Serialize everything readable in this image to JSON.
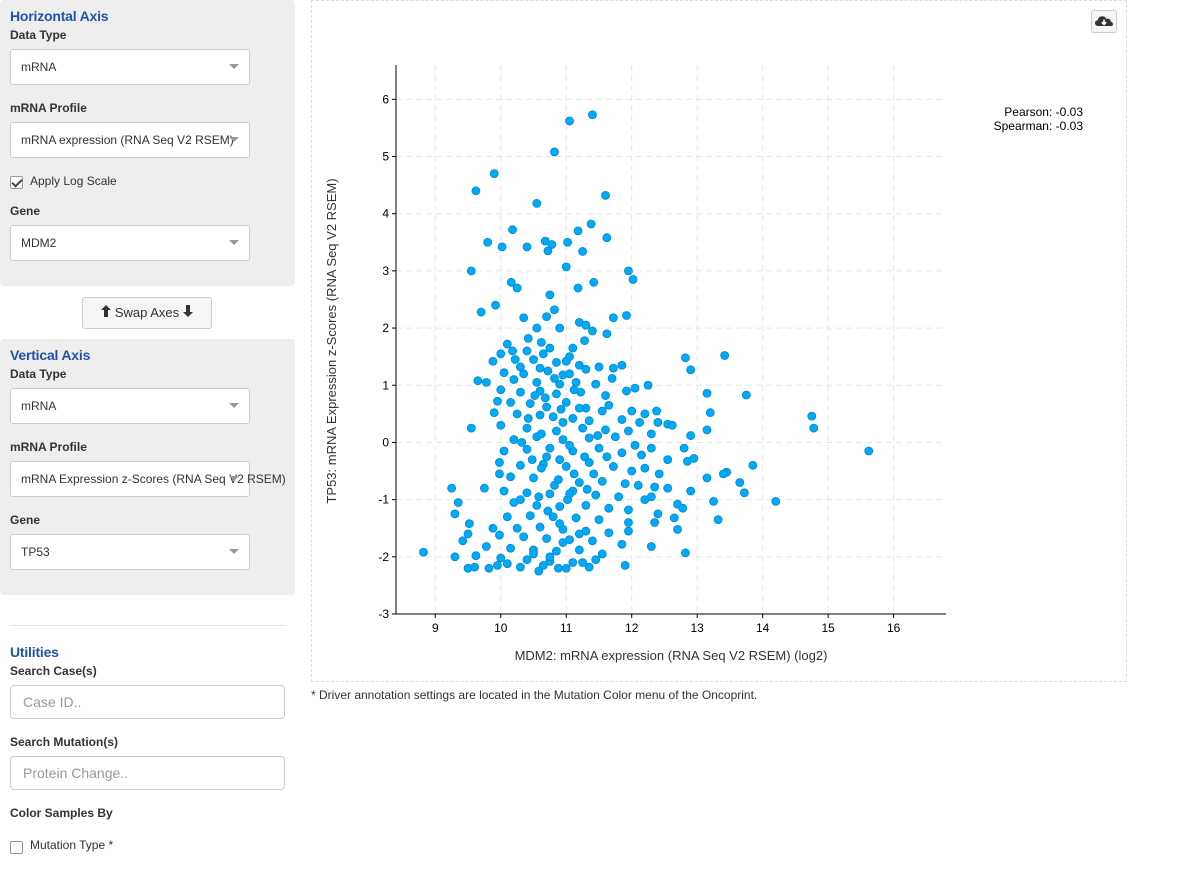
{
  "horizontal_axis": {
    "title": "Horizontal Axis",
    "data_type_label": "Data Type",
    "data_type_value": "mRNA",
    "profile_label": "mRNA Profile",
    "profile_value": "mRNA expression (RNA Seq V2 RSEM)",
    "log_scale_label": "Apply Log Scale",
    "log_scale_checked": true,
    "gene_label": "Gene",
    "gene_value": "MDM2"
  },
  "swap_axes_label": "Swap Axes",
  "vertical_axis": {
    "title": "Vertical Axis",
    "data_type_label": "Data Type",
    "data_type_value": "mRNA",
    "profile_label": "mRNA Profile",
    "profile_value": "mRNA Expression z-Scores (RNA Seq V2 RSEM)",
    "gene_label": "Gene",
    "gene_value": "TP53"
  },
  "utilities": {
    "title": "Utilities",
    "search_cases_label": "Search Case(s)",
    "search_cases_placeholder": "Case ID..",
    "search_mutations_label": "Search Mutation(s)",
    "search_mutations_placeholder": "Protein Change..",
    "color_by_label": "Color Samples By",
    "mutation_type_label": "Mutation Type *",
    "mutation_type_checked": false
  },
  "footnote": "* Driver annotation settings are located in the Mutation Color menu of the Oncoprint.",
  "icons": {
    "download": "cloud-download-icon",
    "caret": "caret-down-icon",
    "arrow_up": "arrow-up-icon",
    "arrow_down": "arrow-down-icon"
  },
  "chart_data": {
    "type": "scatter",
    "xlabel": "MDM2: mRNA expression (RNA Seq V2 RSEM) (log2)",
    "ylabel": "TP53: mRNA Expression z-Scores (RNA Seq V2 RSEM)",
    "xlim": [
      8.4,
      16.8
    ],
    "ylim": [
      -3,
      6.6
    ],
    "xticks": [
      9,
      10,
      11,
      12,
      13,
      14,
      15,
      16
    ],
    "yticks": [
      -3,
      -2,
      -1,
      0,
      1,
      2,
      3,
      4,
      5,
      6
    ],
    "grid": true,
    "marker_color": "#00AAF8",
    "marker_edge_color": "#0089C6",
    "annotations": [
      "Pearson: -0.03",
      "Spearman: -0.03"
    ],
    "points": [
      [
        11.4,
        5.73
      ],
      [
        11.05,
        5.62
      ],
      [
        10.82,
        5.08
      ],
      [
        9.9,
        4.7
      ],
      [
        9.62,
        4.4
      ],
      [
        10.55,
        4.18
      ],
      [
        11.6,
        4.32
      ],
      [
        11.38,
        3.82
      ],
      [
        11.18,
        3.7
      ],
      [
        10.18,
        3.72
      ],
      [
        9.8,
        3.5
      ],
      [
        10.02,
        3.42
      ],
      [
        10.4,
        3.42
      ],
      [
        10.68,
        3.52
      ],
      [
        11.02,
        3.5
      ],
      [
        11.62,
        3.58
      ],
      [
        10.78,
        3.46
      ],
      [
        10.72,
        3.35
      ],
      [
        11.25,
        3.34
      ],
      [
        9.55,
        3.0
      ],
      [
        11.0,
        3.07
      ],
      [
        11.95,
        3.0
      ],
      [
        12.02,
        2.85
      ],
      [
        10.16,
        2.8
      ],
      [
        10.25,
        2.7
      ],
      [
        11.42,
        2.8
      ],
      [
        11.18,
        2.7
      ],
      [
        10.75,
        2.58
      ],
      [
        9.92,
        2.4
      ],
      [
        9.7,
        2.28
      ],
      [
        10.82,
        2.32
      ],
      [
        11.72,
        2.18
      ],
      [
        11.92,
        2.22
      ],
      [
        10.35,
        2.18
      ],
      [
        10.7,
        2.2
      ],
      [
        11.2,
        2.1
      ],
      [
        11.4,
        1.95
      ],
      [
        11.3,
        2.05
      ],
      [
        10.55,
        2.0
      ],
      [
        10.9,
        2.0
      ],
      [
        11.62,
        1.9
      ],
      [
        10.42,
        1.82
      ],
      [
        11.28,
        1.78
      ],
      [
        10.62,
        1.75
      ],
      [
        10.1,
        1.72
      ],
      [
        10.18,
        1.6
      ],
      [
        10.4,
        1.6
      ],
      [
        10.65,
        1.55
      ],
      [
        11.1,
        1.65
      ],
      [
        11.05,
        1.5
      ],
      [
        10.0,
        1.55
      ],
      [
        10.22,
        1.45
      ],
      [
        10.5,
        1.45
      ],
      [
        10.85,
        1.4
      ],
      [
        11.0,
        1.42
      ],
      [
        10.75,
        1.65
      ],
      [
        9.88,
        1.42
      ],
      [
        10.3,
        1.32
      ],
      [
        10.6,
        1.3
      ],
      [
        11.2,
        1.35
      ],
      [
        11.5,
        1.32
      ],
      [
        11.72,
        1.3
      ],
      [
        11.85,
        1.35
      ],
      [
        10.05,
        1.22
      ],
      [
        10.35,
        1.2
      ],
      [
        10.72,
        1.25
      ],
      [
        10.95,
        1.18
      ],
      [
        11.3,
        1.28
      ],
      [
        11.05,
        1.2
      ],
      [
        11.7,
        1.12
      ],
      [
        9.65,
        1.08
      ],
      [
        9.78,
        1.05
      ],
      [
        10.2,
        1.1
      ],
      [
        10.55,
        1.05
      ],
      [
        10.9,
        1.02
      ],
      [
        11.15,
        1.05
      ],
      [
        11.45,
        1.02
      ],
      [
        12.05,
        0.95
      ],
      [
        12.25,
        1.0
      ],
      [
        12.82,
        1.48
      ],
      [
        12.9,
        1.27
      ],
      [
        13.42,
        1.52
      ],
      [
        10.0,
        0.92
      ],
      [
        10.3,
        0.88
      ],
      [
        10.6,
        0.9
      ],
      [
        10.85,
        0.85
      ],
      [
        11.22,
        0.88
      ],
      [
        11.6,
        0.82
      ],
      [
        11.92,
        0.9
      ],
      [
        13.15,
        0.86
      ],
      [
        13.75,
        0.83
      ],
      [
        9.95,
        0.72
      ],
      [
        10.15,
        0.7
      ],
      [
        10.45,
        0.68
      ],
      [
        10.7,
        0.62
      ],
      [
        11.0,
        0.7
      ],
      [
        11.3,
        0.6
      ],
      [
        11.65,
        0.65
      ],
      [
        11.55,
        0.55
      ],
      [
        12.0,
        0.55
      ],
      [
        12.2,
        0.5
      ],
      [
        12.38,
        0.55
      ],
      [
        13.2,
        0.52
      ],
      [
        14.75,
        0.46
      ],
      [
        9.9,
        0.52
      ],
      [
        10.25,
        0.5
      ],
      [
        10.6,
        0.48
      ],
      [
        10.8,
        0.45
      ],
      [
        11.1,
        0.42
      ],
      [
        11.35,
        0.38
      ],
      [
        11.85,
        0.4
      ],
      [
        12.12,
        0.35
      ],
      [
        12.4,
        0.35
      ],
      [
        12.55,
        0.32
      ],
      [
        12.62,
        0.3
      ],
      [
        13.15,
        0.22
      ],
      [
        14.78,
        0.25
      ],
      [
        9.55,
        0.25
      ],
      [
        10.0,
        0.3
      ],
      [
        10.4,
        0.25
      ],
      [
        10.85,
        0.2
      ],
      [
        11.25,
        0.25
      ],
      [
        11.6,
        0.22
      ],
      [
        11.95,
        0.2
      ],
      [
        12.3,
        0.15
      ],
      [
        12.9,
        0.12
      ],
      [
        10.2,
        0.05
      ],
      [
        10.55,
        0.1
      ],
      [
        10.95,
        0.05
      ],
      [
        11.35,
        0.08
      ],
      [
        11.75,
        0.1
      ],
      [
        12.05,
        -0.05
      ],
      [
        12.3,
        -0.1
      ],
      [
        12.8,
        -0.1
      ],
      [
        12.95,
        -0.28
      ],
      [
        12.85,
        -0.33
      ],
      [
        10.05,
        -0.15
      ],
      [
        10.4,
        -0.12
      ],
      [
        10.75,
        -0.1
      ],
      [
        11.1,
        -0.15
      ],
      [
        11.5,
        -0.1
      ],
      [
        11.85,
        -0.18
      ],
      [
        12.15,
        -0.22
      ],
      [
        12.55,
        -0.3
      ],
      [
        13.45,
        -0.52
      ],
      [
        13.4,
        -0.55
      ],
      [
        13.85,
        -0.4
      ],
      [
        15.62,
        -0.15
      ],
      [
        9.98,
        -0.35
      ],
      [
        10.3,
        -0.4
      ],
      [
        10.65,
        -0.38
      ],
      [
        11.0,
        -0.42
      ],
      [
        11.35,
        -0.35
      ],
      [
        11.72,
        -0.42
      ],
      [
        12.0,
        -0.5
      ],
      [
        12.2,
        -0.45
      ],
      [
        12.42,
        -0.55
      ],
      [
        13.15,
        -0.62
      ],
      [
        13.65,
        -0.7
      ],
      [
        13.72,
        -0.88
      ],
      [
        14.2,
        -1.03
      ],
      [
        13.25,
        -1.03
      ],
      [
        9.98,
        -0.55
      ],
      [
        10.15,
        -0.6
      ],
      [
        10.5,
        -0.62
      ],
      [
        10.88,
        -0.65
      ],
      [
        11.2,
        -0.7
      ],
      [
        11.55,
        -0.68
      ],
      [
        11.9,
        -0.72
      ],
      [
        12.1,
        -0.75
      ],
      [
        12.35,
        -0.78
      ],
      [
        12.55,
        -0.8
      ],
      [
        12.9,
        -0.85
      ],
      [
        9.75,
        -0.8
      ],
      [
        9.25,
        -0.8
      ],
      [
        10.05,
        -0.85
      ],
      [
        10.4,
        -0.88
      ],
      [
        10.75,
        -0.9
      ],
      [
        11.1,
        -0.85
      ],
      [
        11.45,
        -0.92
      ],
      [
        11.8,
        -0.95
      ],
      [
        12.2,
        -1.0
      ],
      [
        12.3,
        -0.95
      ],
      [
        12.7,
        -1.08
      ],
      [
        12.78,
        -1.15
      ],
      [
        9.35,
        -1.05
      ],
      [
        10.2,
        -1.05
      ],
      [
        10.55,
        -1.1
      ],
      [
        10.9,
        -1.12
      ],
      [
        11.3,
        -1.1
      ],
      [
        11.65,
        -1.15
      ],
      [
        11.95,
        -1.18
      ],
      [
        12.4,
        -1.25
      ],
      [
        9.3,
        -1.25
      ],
      [
        10.1,
        -1.3
      ],
      [
        10.45,
        -1.28
      ],
      [
        10.8,
        -1.3
      ],
      [
        11.15,
        -1.32
      ],
      [
        11.5,
        -1.35
      ],
      [
        11.95,
        -1.4
      ],
      [
        12.35,
        -1.4
      ],
      [
        12.65,
        -1.32
      ],
      [
        13.32,
        -1.35
      ],
      [
        9.52,
        -1.42
      ],
      [
        9.88,
        -1.5
      ],
      [
        10.25,
        -1.5
      ],
      [
        10.6,
        -1.48
      ],
      [
        10.95,
        -1.52
      ],
      [
        11.3,
        -1.55
      ],
      [
        11.65,
        -1.58
      ],
      [
        11.95,
        -1.55
      ],
      [
        12.7,
        -1.52
      ],
      [
        9.5,
        -1.6
      ],
      [
        9.98,
        -1.62
      ],
      [
        10.35,
        -1.65
      ],
      [
        10.7,
        -1.68
      ],
      [
        11.05,
        -1.7
      ],
      [
        11.4,
        -1.72
      ],
      [
        11.85,
        -1.78
      ],
      [
        12.3,
        -1.82
      ],
      [
        9.42,
        -1.72
      ],
      [
        9.78,
        -1.82
      ],
      [
        10.15,
        -1.85
      ],
      [
        10.5,
        -1.88
      ],
      [
        10.85,
        -1.9
      ],
      [
        11.2,
        -1.88
      ],
      [
        11.55,
        -1.95
      ],
      [
        12.82,
        -1.93
      ],
      [
        8.82,
        -1.92
      ],
      [
        9.3,
        -2.0
      ],
      [
        9.62,
        -1.98
      ],
      [
        10.0,
        -2.02
      ],
      [
        10.4,
        -2.05
      ],
      [
        10.75,
        -2.08
      ],
      [
        11.1,
        -2.1
      ],
      [
        11.45,
        -2.05
      ],
      [
        9.95,
        -2.15
      ],
      [
        10.3,
        -2.18
      ],
      [
        10.65,
        -2.15
      ],
      [
        11.0,
        -2.2
      ],
      [
        11.35,
        -2.18
      ],
      [
        11.9,
        -2.15
      ],
      [
        9.5,
        -2.2
      ],
      [
        9.6,
        -2.18
      ],
      [
        9.82,
        -2.2
      ],
      [
        10.1,
        -2.12
      ],
      [
        10.58,
        -2.25
      ],
      [
        10.88,
        -2.2
      ],
      [
        11.25,
        -2.1
      ],
      [
        10.7,
        -0.25
      ],
      [
        10.9,
        -0.3
      ],
      [
        11.05,
        -0.05
      ],
      [
        10.62,
        0.15
      ],
      [
        10.95,
        0.35
      ],
      [
        11.2,
        0.6
      ],
      [
        10.68,
        0.78
      ],
      [
        10.92,
        0.58
      ],
      [
        11.12,
        -0.55
      ],
      [
        10.82,
        -0.75
      ],
      [
        10.58,
        -0.95
      ],
      [
        11.42,
        -0.55
      ],
      [
        11.62,
        -0.25
      ],
      [
        10.72,
        -1.2
      ],
      [
        11.02,
        -1.0
      ],
      [
        10.9,
        -1.42
      ],
      [
        11.32,
        -0.82
      ],
      [
        10.48,
        -0.3
      ],
      [
        10.32,
        0.0
      ],
      [
        11.48,
        0.12
      ],
      [
        11.28,
        -0.25
      ],
      [
        10.42,
        0.42
      ],
      [
        10.82,
        1.12
      ],
      [
        11.12,
        0.92
      ],
      [
        10.52,
        0.82
      ],
      [
        10.95,
        -1.75
      ],
      [
        10.5,
        -1.95
      ],
      [
        10.75,
        -2.0
      ],
      [
        11.2,
        -1.6
      ],
      [
        10.3,
        -1.0
      ],
      [
        10.62,
        -0.45
      ],
      [
        11.05,
        -0.9
      ]
    ]
  }
}
